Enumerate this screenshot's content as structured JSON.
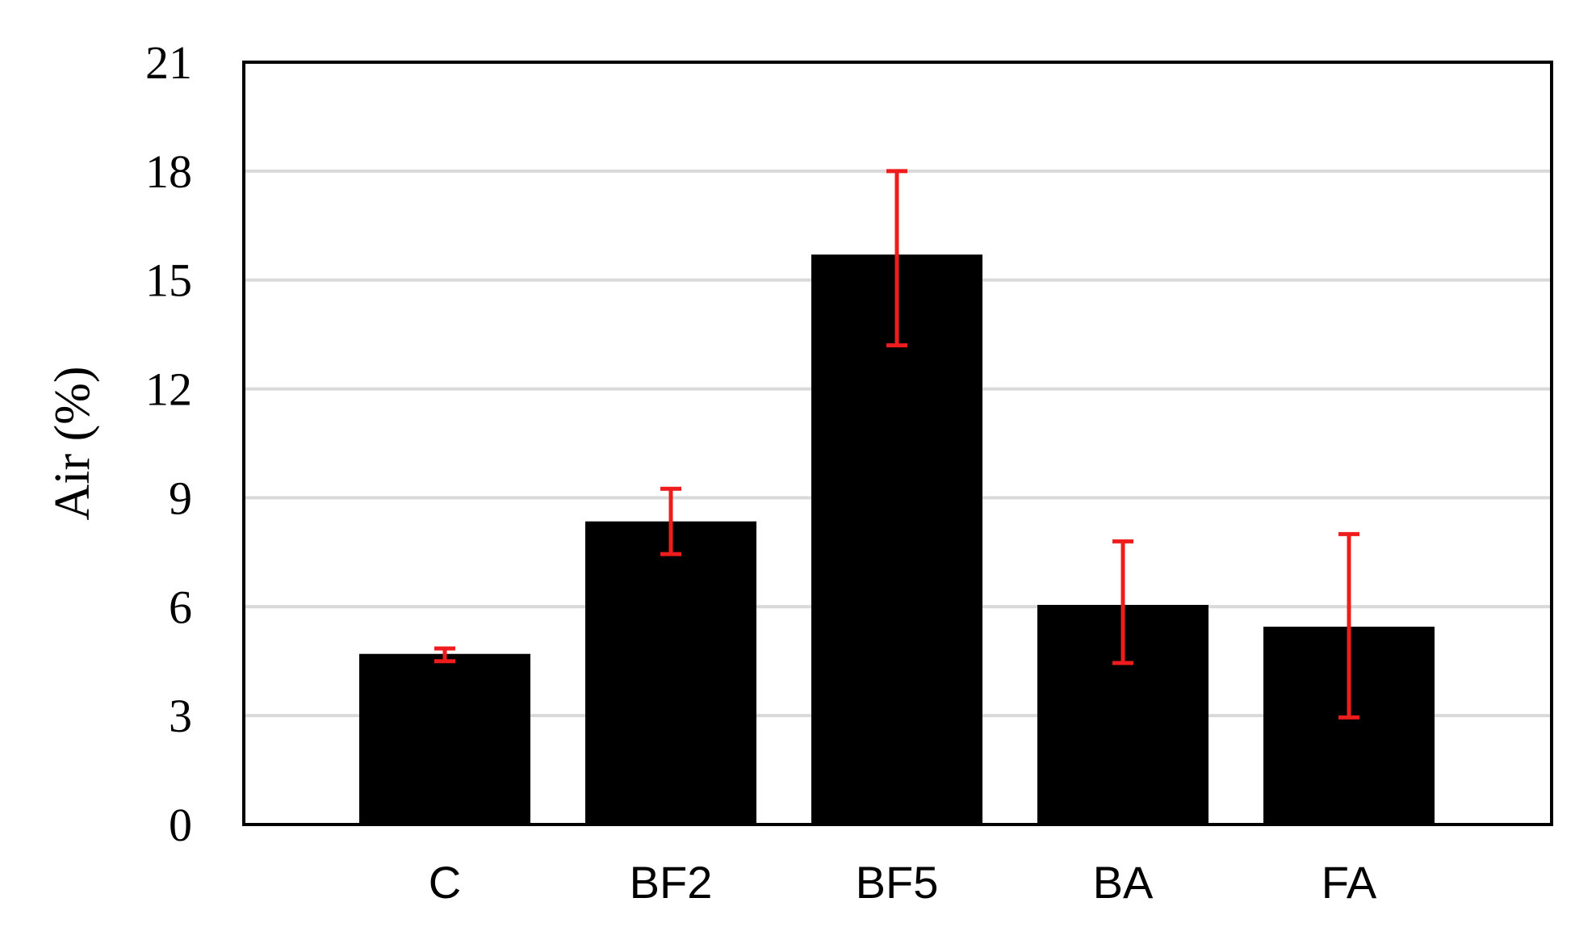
{
  "chart_data": {
    "type": "bar",
    "title": "",
    "xlabel": "",
    "ylabel": "Air (%)",
    "categories": [
      "C",
      "BF2",
      "BF5",
      "BA",
      "FA"
    ],
    "values": [
      4.7,
      8.35,
      15.7,
      6.05,
      5.45
    ],
    "error_low": [
      4.5,
      7.45,
      13.2,
      4.45,
      2.95
    ],
    "error_high": [
      4.85,
      9.25,
      18.0,
      7.8,
      8.0
    ],
    "ylim": [
      0,
      21
    ],
    "yticks": [
      0,
      3,
      6,
      9,
      12,
      15,
      18,
      21
    ],
    "grid": true,
    "legend": "none",
    "bar_color": "#000000",
    "error_color": "#ee1c1c",
    "grid_color": "#d9d9d9"
  }
}
